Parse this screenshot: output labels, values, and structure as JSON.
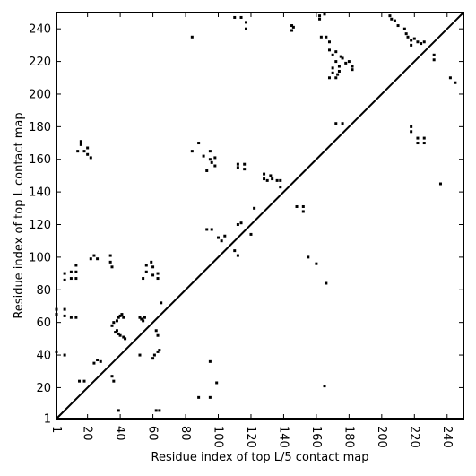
{
  "chart_data": {
    "type": "scatter",
    "xlabel": "Residue index of top L/5 contact map",
    "ylabel": "Residue index of top L contact map",
    "xlim": [
      1,
      250
    ],
    "ylim": [
      1,
      250
    ],
    "x_ticks": [
      1,
      20,
      40,
      60,
      80,
      100,
      120,
      140,
      160,
      180,
      200,
      220,
      240
    ],
    "y_ticks": [
      1,
      20,
      40,
      60,
      80,
      100,
      120,
      140,
      160,
      180,
      200,
      220,
      240
    ],
    "diagonal": true,
    "grid": false,
    "marker": "square",
    "color": "#000000",
    "series": [
      {
        "values": [
          [
            1,
            42
          ],
          [
            1,
            65
          ],
          [
            1,
            68
          ],
          [
            6,
            64
          ],
          [
            6,
            68
          ],
          [
            6,
            40
          ],
          [
            6,
            86
          ],
          [
            6,
            90
          ],
          [
            10,
            87
          ],
          [
            10,
            91
          ],
          [
            10,
            63
          ],
          [
            13,
            63
          ],
          [
            13,
            87
          ],
          [
            13,
            91
          ],
          [
            13,
            95
          ],
          [
            15,
            24
          ],
          [
            18,
            24
          ],
          [
            14,
            165
          ],
          [
            16,
            169
          ],
          [
            16,
            171
          ],
          [
            18,
            165
          ],
          [
            20,
            167
          ],
          [
            20,
            163
          ],
          [
            22,
            161
          ],
          [
            22,
            99
          ],
          [
            24,
            101
          ],
          [
            26,
            99
          ],
          [
            24,
            35
          ],
          [
            26,
            37
          ],
          [
            28,
            36
          ],
          [
            34,
            101
          ],
          [
            34,
            97
          ],
          [
            35,
            94
          ],
          [
            35,
            27
          ],
          [
            36,
            24
          ],
          [
            35,
            58
          ],
          [
            36,
            60
          ],
          [
            38,
            61
          ],
          [
            39,
            63
          ],
          [
            40,
            64
          ],
          [
            41,
            65
          ],
          [
            42,
            63
          ],
          [
            37,
            54
          ],
          [
            38,
            55
          ],
          [
            39,
            53
          ],
          [
            40,
            52
          ],
          [
            42,
            51
          ],
          [
            43,
            50
          ],
          [
            39,
            6
          ],
          [
            52,
            63
          ],
          [
            53,
            62
          ],
          [
            54,
            61
          ],
          [
            55,
            63
          ],
          [
            52,
            40
          ],
          [
            60,
            38
          ],
          [
            61,
            40
          ],
          [
            62,
            55
          ],
          [
            63,
            42
          ],
          [
            64,
            43
          ],
          [
            63,
            52
          ],
          [
            65,
            72
          ],
          [
            54,
            87
          ],
          [
            56,
            91
          ],
          [
            56,
            95
          ],
          [
            59,
            97
          ],
          [
            60,
            94
          ],
          [
            60,
            89
          ],
          [
            63,
            87
          ],
          [
            63,
            90
          ],
          [
            62,
            6
          ],
          [
            64,
            6
          ],
          [
            84,
            165
          ],
          [
            88,
            170
          ],
          [
            88,
            14
          ],
          [
            84,
            235
          ],
          [
            91,
            162
          ],
          [
            93,
            153
          ],
          [
            95,
            165
          ],
          [
            95,
            160
          ],
          [
            96,
            158
          ],
          [
            98,
            161
          ],
          [
            98,
            156
          ],
          [
            93,
            117
          ],
          [
            96,
            117
          ],
          [
            100,
            112
          ],
          [
            102,
            110
          ],
          [
            104,
            113
          ],
          [
            95,
            36
          ],
          [
            95,
            14
          ],
          [
            99,
            23
          ],
          [
            110,
            104
          ],
          [
            112,
            101
          ],
          [
            112,
            120
          ],
          [
            114,
            121
          ],
          [
            112,
            157
          ],
          [
            112,
            155
          ],
          [
            116,
            157
          ],
          [
            116,
            154
          ],
          [
            120,
            114
          ],
          [
            122,
            130
          ],
          [
            110,
            247
          ],
          [
            114,
            247
          ],
          [
            117,
            244
          ],
          [
            117,
            240
          ],
          [
            128,
            151
          ],
          [
            128,
            148
          ],
          [
            130,
            147
          ],
          [
            132,
            150
          ],
          [
            133,
            148
          ],
          [
            136,
            147
          ],
          [
            138,
            147
          ],
          [
            138,
            143
          ],
          [
            145,
            242
          ],
          [
            145,
            239
          ],
          [
            146,
            241
          ],
          [
            148,
            131
          ],
          [
            152,
            131
          ],
          [
            152,
            128
          ],
          [
            155,
            100
          ],
          [
            160,
            96
          ],
          [
            162,
            248
          ],
          [
            162,
            246
          ],
          [
            165,
            249
          ],
          [
            163,
            235
          ],
          [
            166,
            235
          ],
          [
            168,
            232
          ],
          [
            168,
            227
          ],
          [
            170,
            224
          ],
          [
            172,
            226
          ],
          [
            172,
            220
          ],
          [
            175,
            223
          ],
          [
            174,
            217
          ],
          [
            176,
            222
          ],
          [
            178,
            219
          ],
          [
            180,
            220
          ],
          [
            182,
            217
          ],
          [
            182,
            215
          ],
          [
            174,
            214
          ],
          [
            170,
            216
          ],
          [
            170,
            213
          ],
          [
            168,
            210
          ],
          [
            172,
            210
          ],
          [
            173,
            212
          ],
          [
            172,
            182
          ],
          [
            176,
            182
          ],
          [
            166,
            84
          ],
          [
            165,
            21
          ],
          [
            205,
            248
          ],
          [
            206,
            246
          ],
          [
            208,
            245
          ],
          [
            210,
            242
          ],
          [
            214,
            240
          ],
          [
            215,
            237
          ],
          [
            216,
            235
          ],
          [
            218,
            233
          ],
          [
            218,
            230
          ],
          [
            220,
            234
          ],
          [
            222,
            232
          ],
          [
            224,
            231
          ],
          [
            226,
            232
          ],
          [
            232,
            224
          ],
          [
            232,
            221
          ],
          [
            218,
            180
          ],
          [
            218,
            177
          ],
          [
            222,
            173
          ],
          [
            222,
            170
          ],
          [
            226,
            173
          ],
          [
            226,
            170
          ],
          [
            236,
            145
          ],
          [
            242,
            210
          ],
          [
            245,
            207
          ]
        ]
      }
    ]
  }
}
